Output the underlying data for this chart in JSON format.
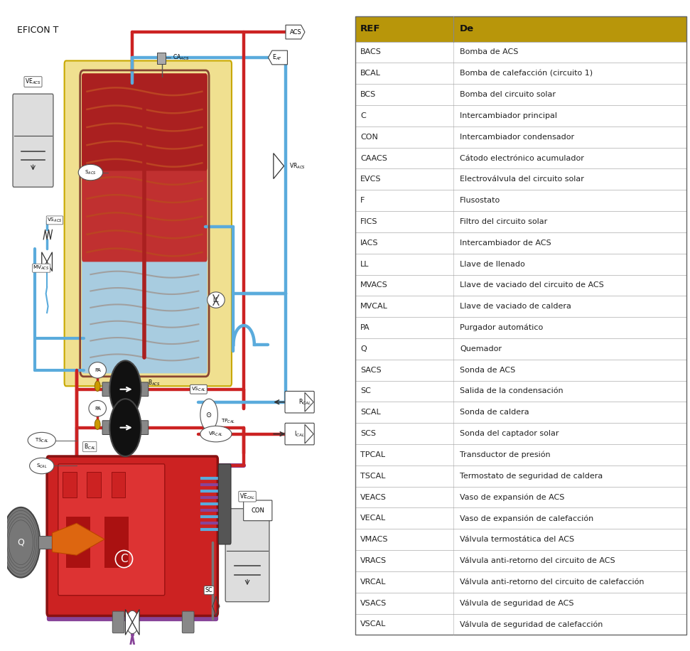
{
  "title": "EFICON T",
  "table_header_bg": "#b8960a",
  "table_border": "#aaaaaa",
  "table_entries": [
    [
      "BACS",
      "Bomba de ACS"
    ],
    [
      "BCAL",
      "Bomba de calefacción (circuito 1)"
    ],
    [
      "BCS",
      "Bomba del circuito solar"
    ],
    [
      "C",
      "Intercambiador principal"
    ],
    [
      "CON",
      "Intercambiador condensador"
    ],
    [
      "CAACS",
      "Cátodo electrónico acumulador"
    ],
    [
      "EVCS",
      "Electroválvula del circuito solar"
    ],
    [
      "F",
      "Flusostato"
    ],
    [
      "FICS",
      "Filtro del circuito solar"
    ],
    [
      "IACS",
      "Intercambiador de ACS"
    ],
    [
      "LL",
      "Llave de llenado"
    ],
    [
      "MVACS",
      "Llave de vaciado del circuito de ACS"
    ],
    [
      "MVCAL",
      "Llave de vaciado de caldera"
    ],
    [
      "PA",
      "Purgador automático"
    ],
    [
      "Q",
      "Quemador"
    ],
    [
      "SACS",
      "Sonda de ACS"
    ],
    [
      "SC",
      "Salida de la condensación"
    ],
    [
      "SCAL",
      "Sonda de caldera"
    ],
    [
      "SCS",
      "Sonda del captador solar"
    ],
    [
      "TPCAL",
      "Transductor de presión"
    ],
    [
      "TSCAL",
      "Termostato de seguridad de caldera"
    ],
    [
      "VEACS",
      "Vaso de expansión de ACS"
    ],
    [
      "VECAL",
      "Vaso de expansión de calefacción"
    ],
    [
      "VMACS",
      "Válvula termostática del ACS"
    ],
    [
      "VRACS",
      "Válvula anti-retorno del circuito de ACS"
    ],
    [
      "VRCAL",
      "Válvula anti-retorno del circuito de calefacción"
    ],
    [
      "VSACS",
      "Válvula de seguridad de ACS"
    ],
    [
      "VSCAL",
      "Válvula de seguridad de calefacción"
    ]
  ],
  "bg_color": "#ffffff",
  "red_pipe": "#cc2222",
  "blue_pipe": "#5aabdc",
  "purple_pipe": "#884499",
  "tank_red_top": "#c03030",
  "tank_red_mid": "#b04040",
  "tank_blue": "#a8cce0",
  "tank_yellow_bg": "#f0e090",
  "tank_yellow_border": "#c8a800",
  "boiler_red": "#cc2222",
  "boiler_dark": "#881111",
  "gray_light": "#cccccc",
  "gray_mid": "#999999",
  "gray_dark": "#555555",
  "orange_flame": "#dd6610",
  "coil_red": "#bb4422",
  "coil_gray": "#a0a0a0"
}
